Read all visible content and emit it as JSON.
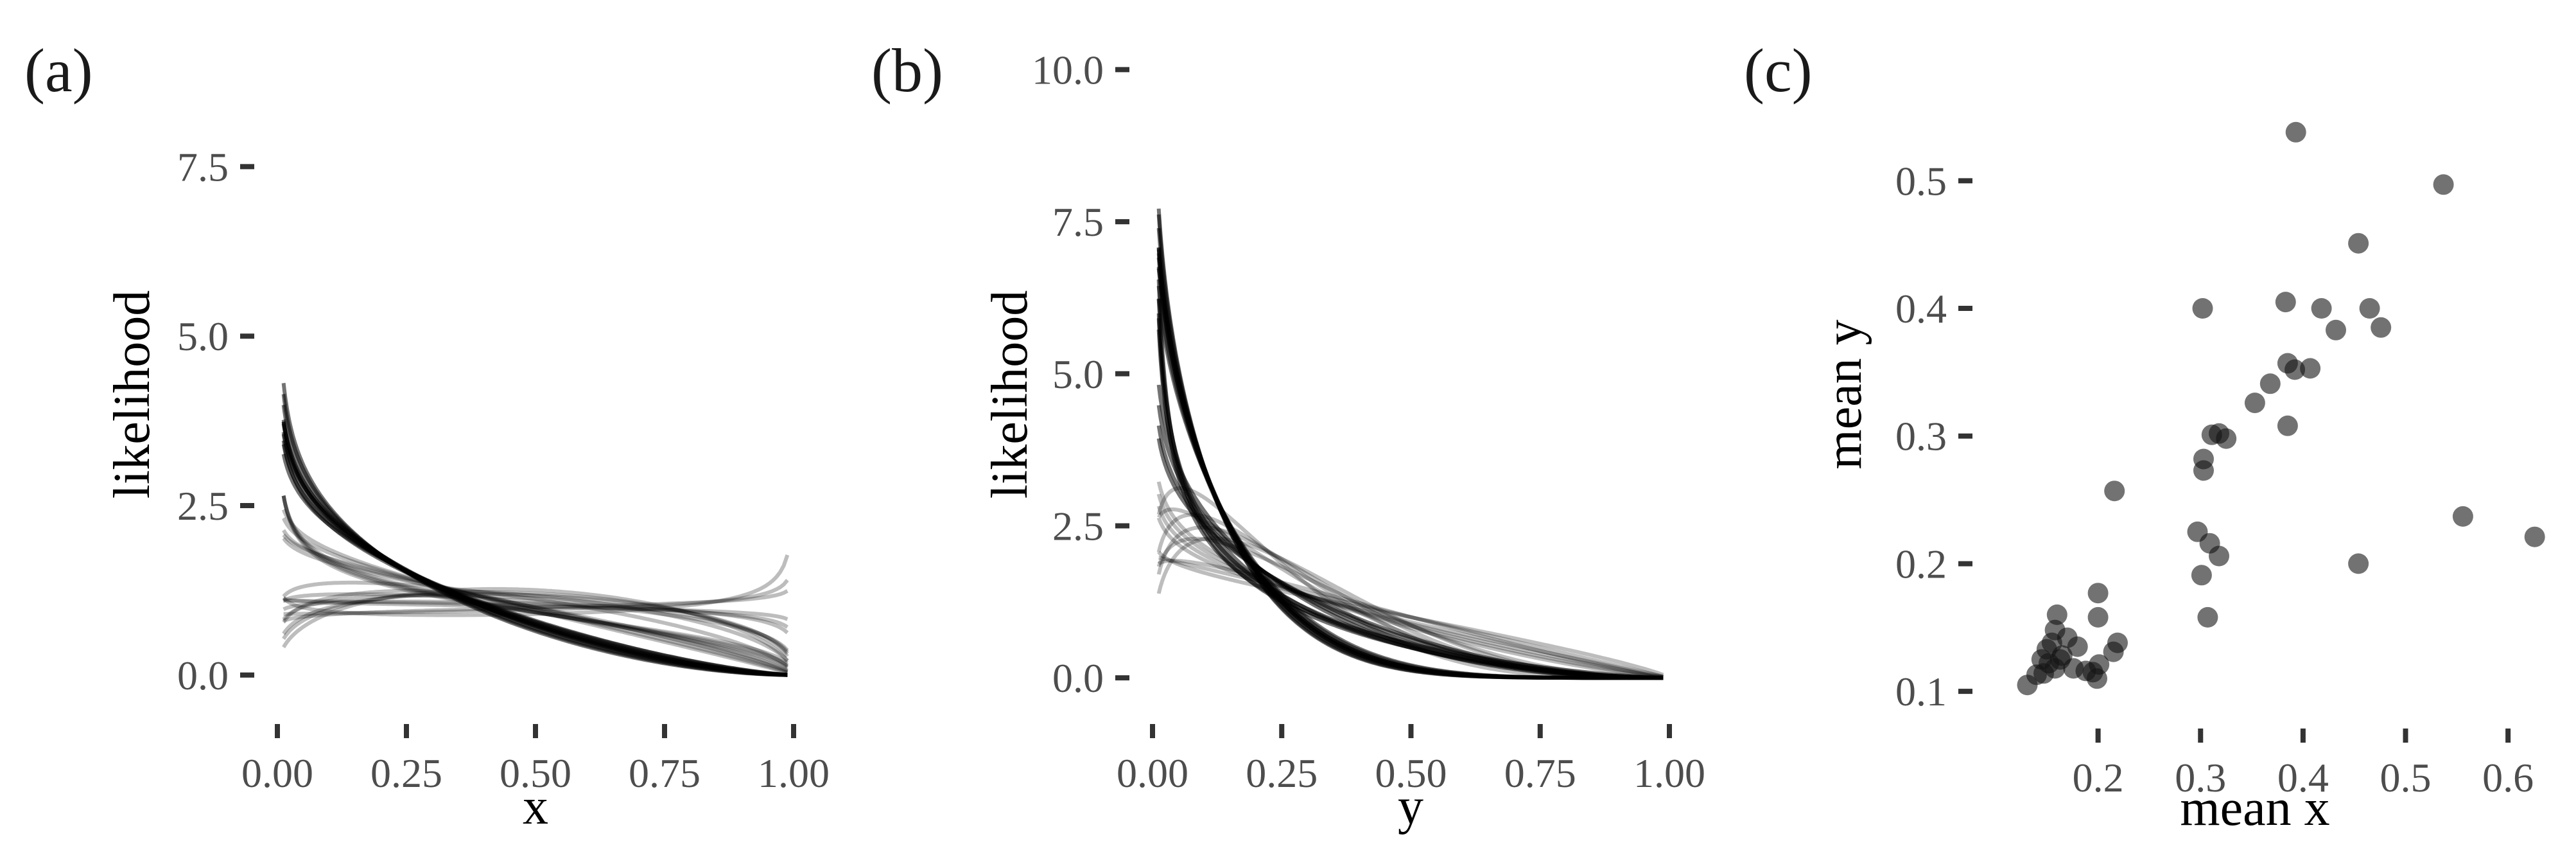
{
  "chart_data": [
    {
      "panel": "(a)",
      "type": "line",
      "xlabel": "x",
      "ylabel": "likelihood",
      "xlim": [
        0,
        1
      ],
      "ylim": [
        -0.4,
        9.2
      ],
      "xticks": [
        "0.00",
        "0.25",
        "0.50",
        "0.75",
        "1.00"
      ],
      "yticks": [
        "0.0",
        "2.5",
        "5.0",
        "7.5"
      ],
      "curve_family": "beta density",
      "series": [
        {
          "alpha": 0.85,
          "beta": 2.6
        },
        {
          "alpha": 0.86,
          "beta": 2.5
        },
        {
          "alpha": 0.84,
          "beta": 2.7
        },
        {
          "alpha": 0.87,
          "beta": 2.45
        },
        {
          "alpha": 0.83,
          "beta": 2.75
        },
        {
          "alpha": 0.85,
          "beta": 2.55
        },
        {
          "alpha": 0.86,
          "beta": 2.65
        },
        {
          "alpha": 0.84,
          "beta": 2.5
        },
        {
          "alpha": 0.88,
          "beta": 2.4
        },
        {
          "alpha": 0.82,
          "beta": 2.8
        },
        {
          "alpha": 0.85,
          "beta": 2.35
        },
        {
          "alpha": 0.87,
          "beta": 2.6
        },
        {
          "alpha": 0.8,
          "beta": 1.45
        },
        {
          "alpha": 0.81,
          "beta": 1.5
        },
        {
          "alpha": 0.79,
          "beta": 1.4
        },
        {
          "alpha": 0.82,
          "beta": 1.55
        },
        {
          "alpha": 0.92,
          "beta": 1.85
        },
        {
          "alpha": 0.93,
          "beta": 1.75
        },
        {
          "alpha": 0.91,
          "beta": 1.9
        },
        {
          "alpha": 0.94,
          "beta": 1.7
        },
        {
          "alpha": 0.95,
          "beta": 1.8
        },
        {
          "alpha": 1.1,
          "beta": 1.6
        },
        {
          "alpha": 1.2,
          "beta": 1.5
        },
        {
          "alpha": 1.3,
          "beta": 1.45
        },
        {
          "alpha": 1.05,
          "beta": 1.3
        },
        {
          "alpha": 1.4,
          "beta": 1.55
        },
        {
          "alpha": 1.15,
          "beta": 1.35
        },
        {
          "alpha": 1.25,
          "beta": 1.4
        },
        {
          "alpha": 1.0,
          "beta": 1.1
        },
        {
          "alpha": 1.05,
          "beta": 1.15
        },
        {
          "alpha": 0.98,
          "beta": 1.05
        },
        {
          "alpha": 1.0,
          "beta": 0.9
        },
        {
          "alpha": 1.05,
          "beta": 0.95
        },
        {
          "alpha": 0.9,
          "beta": 0.8
        }
      ]
    },
    {
      "panel": "(b)",
      "type": "line",
      "xlabel": "y",
      "ylabel": "likelihood",
      "xlim": [
        0,
        1
      ],
      "ylim": [
        -0.4,
        10.3
      ],
      "xticks": [
        "0.00",
        "0.25",
        "0.50",
        "0.75",
        "1.00"
      ],
      "yticks": [
        "0.0",
        "2.5",
        "5.0",
        "7.5",
        "10.0"
      ],
      "curve_family": "beta density",
      "series": [
        {
          "alpha": 0.88,
          "beta": 6.0
        },
        {
          "alpha": 0.89,
          "beta": 5.8
        },
        {
          "alpha": 0.87,
          "beta": 6.2
        },
        {
          "alpha": 0.9,
          "beta": 5.6
        },
        {
          "alpha": 0.86,
          "beta": 6.4
        },
        {
          "alpha": 0.88,
          "beta": 5.9
        },
        {
          "alpha": 0.89,
          "beta": 6.1
        },
        {
          "alpha": 0.87,
          "beta": 5.7
        },
        {
          "alpha": 0.91,
          "beta": 5.5
        },
        {
          "alpha": 0.86,
          "beta": 6.3
        },
        {
          "alpha": 0.88,
          "beta": 6.0
        },
        {
          "alpha": 0.9,
          "beta": 5.9
        },
        {
          "alpha": 0.85,
          "beta": 3.2
        },
        {
          "alpha": 0.86,
          "beta": 3.0
        },
        {
          "alpha": 0.84,
          "beta": 3.4
        },
        {
          "alpha": 0.87,
          "beta": 2.9
        },
        {
          "alpha": 0.88,
          "beta": 2.2
        },
        {
          "alpha": 0.89,
          "beta": 2.1
        },
        {
          "alpha": 0.87,
          "beta": 2.3
        },
        {
          "alpha": 0.9,
          "beta": 2.0
        },
        {
          "alpha": 0.6,
          "beta": 2.6
        },
        {
          "alpha": 0.65,
          "beta": 2.8
        },
        {
          "alpha": 0.7,
          "beta": 3.0
        },
        {
          "alpha": 0.62,
          "beta": 2.4
        },
        {
          "alpha": 0.68,
          "beta": 2.7
        },
        {
          "alpha": 1.2,
          "beta": 4.5
        },
        {
          "alpha": 1.25,
          "beta": 4.0
        },
        {
          "alpha": 1.1,
          "beta": 3.5
        },
        {
          "alpha": 1.3,
          "beta": 3.8
        },
        {
          "alpha": 1.2,
          "beta": 3.2
        },
        {
          "alpha": 1.35,
          "beta": 3.6
        },
        {
          "alpha": 1.0,
          "beta": 2.0
        },
        {
          "alpha": 1.05,
          "beta": 2.2
        },
        {
          "alpha": 0.95,
          "beta": 1.8
        }
      ]
    },
    {
      "panel": "(c)",
      "type": "scatter",
      "xlabel": "mean x",
      "ylabel": "mean y",
      "xlim": [
        0.1,
        0.64
      ],
      "ylim": [
        0.088,
        0.552
      ],
      "xticks": [
        0.2,
        0.3,
        0.4,
        0.5,
        0.6
      ],
      "yticks": [
        0.1,
        0.2,
        0.3,
        0.4,
        0.5
      ],
      "x": [
        0.393,
        0.537,
        0.302,
        0.454,
        0.383,
        0.418,
        0.465,
        0.476,
        0.432,
        0.385,
        0.392,
        0.407,
        0.353,
        0.368,
        0.318,
        0.303,
        0.303,
        0.311,
        0.325,
        0.385,
        0.216,
        0.297,
        0.301,
        0.309,
        0.318,
        0.556,
        0.626,
        0.454,
        0.307,
        0.2,
        0.2,
        0.219,
        0.215,
        0.201,
        0.195,
        0.199,
        0.16,
        0.158,
        0.17,
        0.155,
        0.15,
        0.165,
        0.163,
        0.145,
        0.152,
        0.158,
        0.147,
        0.18,
        0.176,
        0.188,
        0.14,
        0.131
      ],
      "y": [
        0.538,
        0.497,
        0.4,
        0.451,
        0.405,
        0.4,
        0.4,
        0.385,
        0.383,
        0.357,
        0.352,
        0.353,
        0.326,
        0.341,
        0.302,
        0.282,
        0.273,
        0.301,
        0.298,
        0.308,
        0.257,
        0.225,
        0.191,
        0.216,
        0.206,
        0.237,
        0.221,
        0.2,
        0.158,
        0.177,
        0.158,
        0.138,
        0.131,
        0.121,
        0.115,
        0.11,
        0.16,
        0.148,
        0.142,
        0.138,
        0.133,
        0.128,
        0.125,
        0.125,
        0.122,
        0.118,
        0.114,
        0.135,
        0.118,
        0.116,
        0.113,
        0.105
      ]
    }
  ]
}
